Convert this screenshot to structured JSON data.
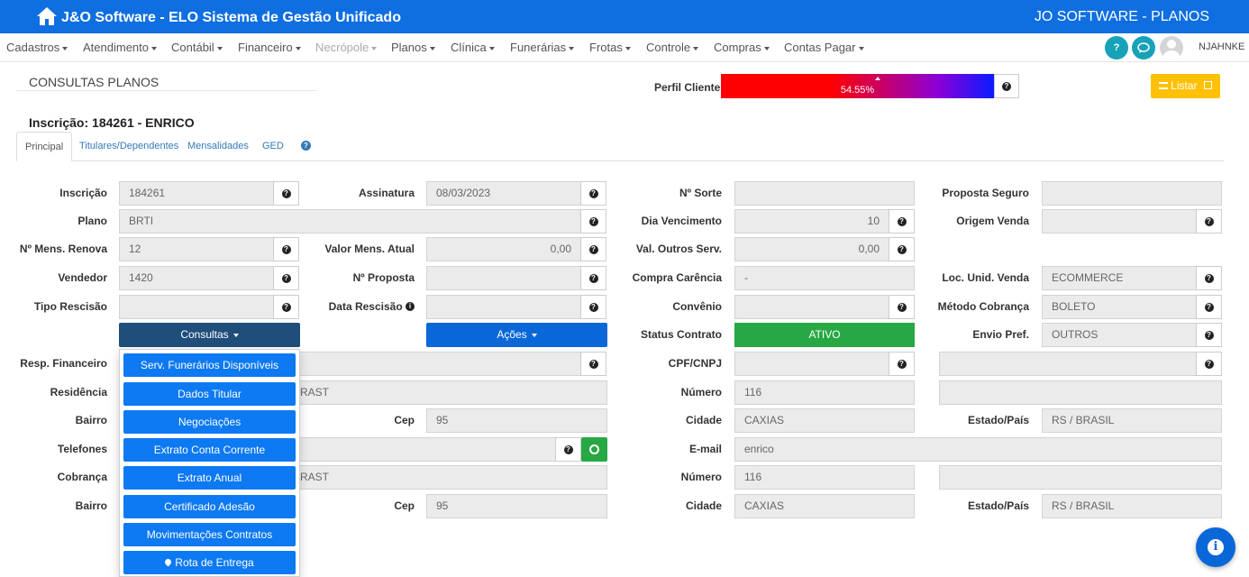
{
  "topbar": {
    "title": "J&O Software - ELO Sistema de Gestão Unificado",
    "right_title": "JO SOFTWARE - PLANOS"
  },
  "menu": {
    "items": [
      {
        "label": "Cadastros"
      },
      {
        "label": "Atendimento"
      },
      {
        "label": "Contábil"
      },
      {
        "label": "Financeiro"
      },
      {
        "label": "Necrópole"
      },
      {
        "label": "Planos"
      },
      {
        "label": "Clínica"
      },
      {
        "label": "Funerárias"
      },
      {
        "label": "Frotas"
      },
      {
        "label": "Controle"
      },
      {
        "label": "Compras"
      },
      {
        "label": "Contas Pagar"
      }
    ],
    "username": "NJAHNKE"
  },
  "page": {
    "title": "CONSULTAS PLANOS",
    "perfil_label": "Perfil Cliente",
    "perfil_value": "54.55%",
    "perfil_fraction": 0.5455,
    "listar_label": "Listar",
    "inscricao_title": "Inscrição: 184261 - ENRICO"
  },
  "tabs": [
    {
      "label": "Principal"
    },
    {
      "label": "Titulares/Dependentes"
    },
    {
      "label": "Mensalidades"
    },
    {
      "label": "GED"
    }
  ],
  "form": {
    "inscricao": {
      "label": "Inscrição",
      "value": "184261"
    },
    "assinatura": {
      "label": "Assinatura",
      "value": "08/03/2023"
    },
    "n_sorte": {
      "label": "Nº Sorte",
      "value": ""
    },
    "proposta_seguro": {
      "label": "Proposta Seguro",
      "value": ""
    },
    "plano": {
      "label": "Plano",
      "value": "BRTI"
    },
    "dia_vencimento": {
      "label": "Dia Vencimento",
      "value": "10"
    },
    "origem_venda": {
      "label": "Origem Venda",
      "value": ""
    },
    "n_mens_renova": {
      "label": "Nº Mens. Renova",
      "value": "12"
    },
    "valor_mens_atual": {
      "label": "Valor Mens. Atual",
      "value": "0,00"
    },
    "val_outros_serv": {
      "label": "Val. Outros Serv.",
      "value": "0,00"
    },
    "vendedor": {
      "label": "Vendedor",
      "value": "1420"
    },
    "n_proposta": {
      "label": "Nº Proposta",
      "value": ""
    },
    "compra_carencia": {
      "label": "Compra Carência",
      "value": "-"
    },
    "loc_unid_venda": {
      "label": "Loc. Unid. Venda",
      "value": "ECOMMERCE"
    },
    "tipo_rescisao": {
      "label": "Tipo Rescisão",
      "value": ""
    },
    "data_rescisao": {
      "label": "Data Rescisão",
      "value": ""
    },
    "convenio": {
      "label": "Convênio",
      "value": ""
    },
    "metodo_cobranca": {
      "label": "Método Cobrança",
      "value": "BOLETO"
    },
    "consultas_btn": "Consultas",
    "acoes_btn": "Ações",
    "status_contrato": {
      "label": "Status Contrato",
      "value": "ATIVO"
    },
    "envio_pref": {
      "label": "Envio Pref.",
      "value": "OUTROS"
    },
    "resp_financeiro": {
      "label": "Resp. Financeiro",
      "value": ""
    },
    "cpf_cnpj": {
      "label": "CPF/CNPJ",
      "value": ""
    },
    "residencia": {
      "label": "Residência",
      "value": "RAST"
    },
    "numero1": {
      "label": "Número",
      "value": "116"
    },
    "bairro1": {
      "label": "Bairro",
      "value": ""
    },
    "cep1": {
      "label": "Cep",
      "value": "95"
    },
    "cidade1": {
      "label": "Cidade",
      "value": "CAXIAS"
    },
    "estado1": {
      "label": "Estado/País",
      "value": "RS / BRASIL"
    },
    "telefones": {
      "label": "Telefones",
      "value": ""
    },
    "email": {
      "label": "E-mail",
      "value": "enrico"
    },
    "cobranca": {
      "label": "Cobrança",
      "value": "RAST"
    },
    "numero2": {
      "label": "Número",
      "value": "116"
    },
    "bairro2": {
      "label": "Bairro",
      "value": ""
    },
    "cep2": {
      "label": "Cep",
      "value": "95"
    },
    "cidade2": {
      "label": "Cidade",
      "value": "CAXIAS"
    },
    "estado2": {
      "label": "Estado/País",
      "value": "RS / BRASIL"
    }
  },
  "consultas_menu": [
    "Serv. Funerários Disponíveis",
    "Dados Titular",
    "Negociações",
    "Extrato Conta Corrente",
    "Extrato Anual",
    "Certificado Adesão",
    "Movimentações Contratos",
    "Rota de Entrega"
  ],
  "colors": {
    "topbar": "#0f6fe0",
    "status_green": "#28a745",
    "consultas_btn": "#1f4e7a",
    "acoes_btn": "#0a67d8",
    "dropdown_item": "#0d79f2",
    "listar_btn": "#ffc107"
  }
}
